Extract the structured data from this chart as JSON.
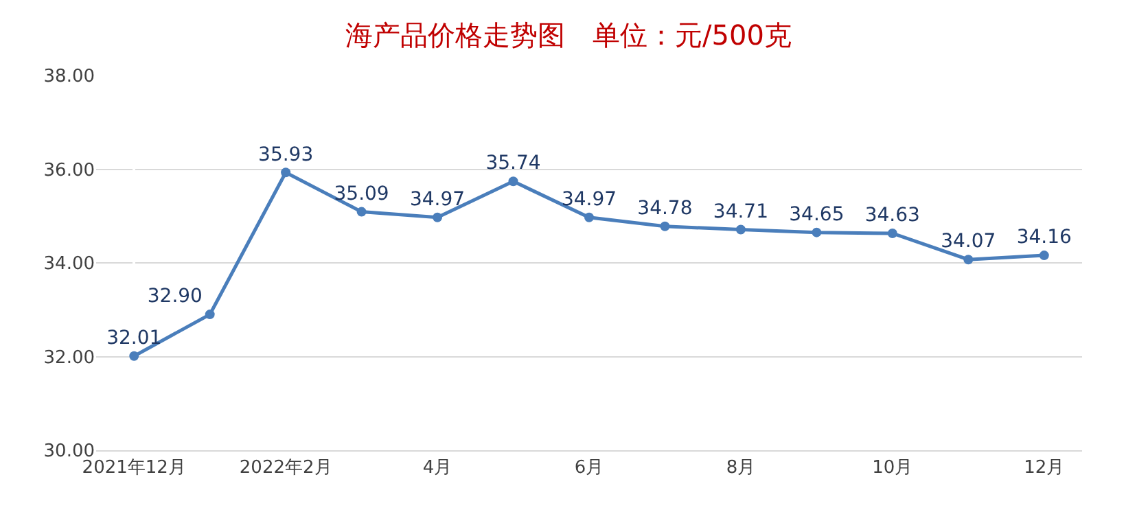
{
  "chart_data": {
    "type": "line",
    "title": "海产品价格走势图　单位：元/500克",
    "categories": [
      "2021年12月",
      null,
      "2022年2月",
      null,
      "4月",
      null,
      "6月",
      null,
      "8月",
      null,
      "10月",
      null,
      "12月"
    ],
    "series": [
      {
        "color": "#4a7ebb",
        "values": [
          32.01,
          32.9,
          35.93,
          35.09,
          34.97,
          35.74,
          34.97,
          34.78,
          34.71,
          34.65,
          34.63,
          34.07,
          34.16
        ],
        "value_labels": [
          "32.01",
          "32.90",
          "35.93",
          "35.09",
          "34.97",
          "35.74",
          "34.97",
          "34.78",
          "34.71",
          "34.65",
          "34.63",
          "34.07",
          "34.16"
        ]
      }
    ],
    "ylim": [
      30,
      38
    ],
    "yticks": [
      {
        "value": 30,
        "label": "30.00"
      },
      {
        "value": 32,
        "label": "32.00"
      },
      {
        "value": 34,
        "label": "34.00"
      },
      {
        "value": 36,
        "label": "36.00"
      },
      {
        "value": 38,
        "label": "38.00"
      }
    ],
    "grid": "y",
    "marker": "circle",
    "line_style": "solid"
  }
}
